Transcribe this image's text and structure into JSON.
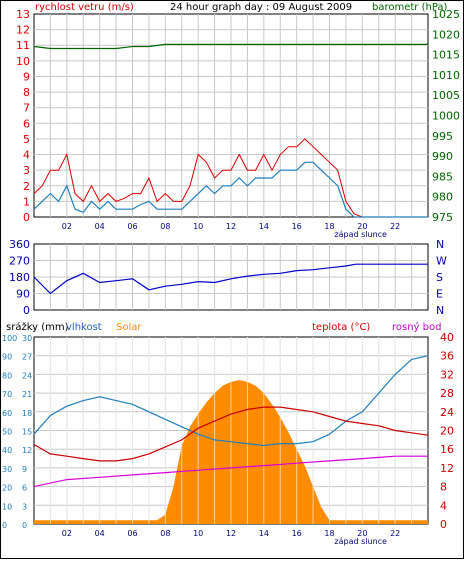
{
  "title": "24 hour graph day : 09 August 2009",
  "colors": {
    "wind": "#dd0000",
    "gust": "#dd0000",
    "baro": "#006600",
    "dir": "#0000cc",
    "humidity": "#1f7fbf",
    "solar": "#ff8c00",
    "temp": "#cc0000",
    "dew": "#dd00dd",
    "grid": "#c8c8c8",
    "hourGrid": "#ffffff"
  },
  "hours_axis": [
    "02",
    "04",
    "06",
    "08",
    "10",
    "12",
    "14",
    "16",
    "18",
    "20",
    "22"
  ],
  "sunset_label": "západ slunce",
  "chart_data": [
    {
      "type": "line",
      "panel": "wind_pressure",
      "left_axis_label": "rychlost vetru (m/s)",
      "right_axis_label": "barometr (hPa)",
      "left_ticks": [
        "0",
        "1",
        "2",
        "3",
        "4",
        "5",
        "6",
        "7",
        "8",
        "9",
        "10",
        "11",
        "12",
        "13"
      ],
      "right_ticks": [
        "975",
        "980",
        "985",
        "990",
        "995",
        "1000",
        "1005",
        "1010",
        "1015",
        "1020",
        "1025"
      ],
      "ylim_left": [
        0,
        13
      ],
      "ylim_right": [
        975,
        1025
      ],
      "series": [
        {
          "key": "gust",
          "x": [
            0,
            0.5,
            1,
            1.5,
            2,
            2.5,
            3,
            3.5,
            4,
            4.5,
            5,
            5.5,
            6,
            6.5,
            7,
            7.5,
            8,
            8.5,
            9,
            9.5,
            10,
            10.5,
            11,
            11.5,
            12,
            12.5,
            13,
            13.5,
            14,
            14.5,
            15,
            15.5,
            16,
            16.5,
            17,
            17.5,
            18,
            18.5,
            19,
            19.5,
            20,
            22,
            24
          ],
          "values": [
            1.5,
            2,
            3,
            3,
            4,
            1.5,
            1,
            2,
            1,
            1.5,
            1,
            1.2,
            1.5,
            1.5,
            2.5,
            1,
            1.5,
            1,
            1,
            2,
            4,
            3.5,
            2.5,
            3,
            3,
            4,
            3,
            3,
            4,
            3,
            4,
            4.5,
            4.5,
            5,
            4.5,
            4,
            3.5,
            3,
            1,
            0.2,
            0,
            0,
            0
          ]
        },
        {
          "key": "wind",
          "x": [
            0,
            0.5,
            1,
            1.5,
            2,
            2.5,
            3,
            3.5,
            4,
            4.5,
            5,
            5.5,
            6,
            6.5,
            7,
            7.5,
            8,
            8.5,
            9,
            9.5,
            10,
            10.5,
            11,
            11.5,
            12,
            12.5,
            13,
            13.5,
            14,
            14.5,
            15,
            15.5,
            16,
            16.5,
            17,
            17.5,
            18,
            18.5,
            19,
            19.5,
            20,
            22,
            24
          ],
          "values": [
            0.5,
            1,
            1.5,
            1,
            2,
            0.5,
            0.3,
            1,
            0.5,
            1,
            0.5,
            0.5,
            0.5,
            0.8,
            1,
            0.5,
            0.5,
            0.5,
            0.5,
            1,
            1.5,
            2,
            1.5,
            2,
            2,
            2.5,
            2,
            2.5,
            2.5,
            2.5,
            3,
            3,
            3,
            3.5,
            3.5,
            3,
            2.5,
            2,
            0.5,
            0,
            0,
            0,
            0
          ]
        },
        {
          "key": "baro",
          "x": [
            0,
            1,
            2,
            3,
            4,
            5,
            6,
            7,
            8,
            9,
            10,
            12,
            14,
            16,
            18,
            20,
            22,
            24
          ],
          "values": [
            1017,
            1016.5,
            1016.5,
            1016.5,
            1016.5,
            1016.5,
            1017,
            1017,
            1017.5,
            1017.5,
            1017.5,
            1017.5,
            1017.5,
            1017.5,
            1017.5,
            1017.5,
            1017.5,
            1017.5
          ]
        }
      ]
    },
    {
      "type": "line",
      "panel": "wind_direction",
      "left_ticks": [
        "0",
        "90",
        "180",
        "270",
        "360"
      ],
      "right_ticks": [
        "N",
        "W",
        "S",
        "E",
        "N"
      ],
      "ylim": [
        0,
        360
      ],
      "series": [
        {
          "key": "dir",
          "x": [
            0,
            1,
            2,
            3,
            4,
            5,
            6,
            7,
            8,
            9,
            10,
            11,
            12,
            13,
            14,
            15,
            16,
            17,
            18,
            19,
            19.6,
            20,
            24
          ],
          "values": [
            180,
            90,
            160,
            200,
            150,
            160,
            170,
            110,
            130,
            140,
            155,
            150,
            170,
            185,
            195,
            200,
            215,
            220,
            230,
            240,
            250,
            250,
            250
          ]
        }
      ]
    },
    {
      "type": "area",
      "panel": "temp_humidity_solar",
      "left_axis_labels": [
        "srážky (mm)",
        "vlhkost",
        "Solar"
      ],
      "right_axis_labels": [
        "teplota (°C)",
        "rosný bod"
      ],
      "left_ticks_rain": [
        "0",
        "10",
        "20",
        "30",
        "40",
        "50",
        "60",
        "70",
        "80",
        "90",
        "100"
      ],
      "left_ticks_hum": [
        "0",
        "3",
        "6",
        "9",
        "12",
        "15",
        "18",
        "21",
        "24",
        "27",
        "30"
      ],
      "right_ticks_temp": [
        "0",
        "4",
        "8",
        "12",
        "16",
        "20",
        "24",
        "28",
        "32",
        "36",
        "40"
      ],
      "ylim_solar": [
        0,
        1000
      ],
      "ylim_temp": [
        0,
        40
      ],
      "ylim_hum": [
        0,
        100
      ],
      "series": [
        {
          "key": "solar",
          "x": [
            0,
            7.5,
            8,
            8.5,
            9,
            9.5,
            10,
            10.5,
            11,
            11.5,
            12,
            12.5,
            13,
            13.5,
            14,
            14.5,
            15,
            15.5,
            16,
            16.5,
            17,
            17.5,
            18,
            24
          ],
          "values": [
            20,
            20,
            50,
            200,
            420,
            520,
            590,
            650,
            700,
            740,
            760,
            770,
            760,
            740,
            700,
            640,
            570,
            490,
            400,
            310,
            200,
            90,
            20,
            20
          ]
        },
        {
          "key": "humidity",
          "x": [
            0,
            1,
            2,
            3,
            4,
            5,
            6,
            7,
            8,
            9,
            10,
            11,
            12,
            13,
            14,
            15,
            16,
            17,
            18,
            19,
            20,
            21,
            22,
            23,
            24
          ],
          "values": [
            48,
            58,
            63,
            66,
            68,
            66,
            64,
            60,
            56,
            52,
            48,
            45,
            44,
            43,
            42,
            43,
            43,
            44,
            48,
            55,
            60,
            70,
            80,
            88,
            90
          ]
        },
        {
          "key": "temp",
          "x": [
            0,
            1,
            2,
            3,
            4,
            5,
            6,
            7,
            8,
            9,
            10,
            11,
            12,
            13,
            14,
            15,
            16,
            17,
            18,
            19,
            20,
            21,
            22,
            23,
            24
          ],
          "values": [
            17,
            15,
            14.5,
            14,
            13.5,
            13.5,
            14,
            15,
            16.5,
            18,
            20.5,
            22,
            23.5,
            24.5,
            25,
            25,
            24.5,
            24,
            23,
            22,
            21.5,
            21,
            20,
            19.5,
            19
          ]
        },
        {
          "key": "dew",
          "x": [
            0,
            2,
            4,
            6,
            8,
            10,
            12,
            14,
            16,
            18,
            20,
            22,
            24
          ],
          "values": [
            8,
            9.5,
            10,
            10.5,
            11,
            11.5,
            12,
            12.5,
            13,
            13.5,
            14,
            14.5,
            14.5
          ]
        }
      ]
    }
  ]
}
